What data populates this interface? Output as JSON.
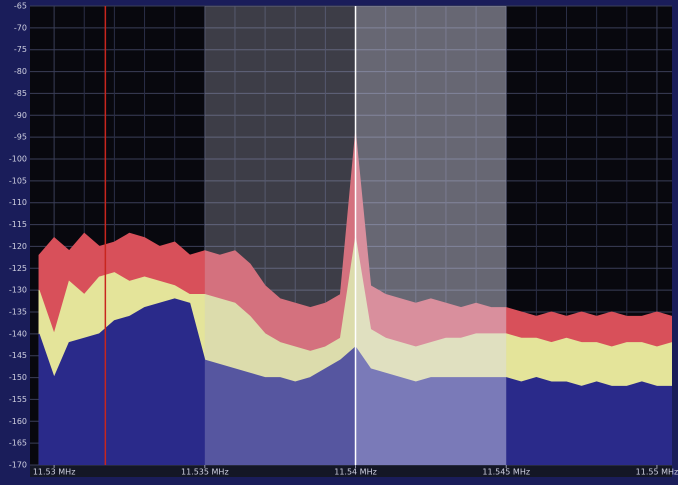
{
  "chart_data": {
    "type": "spectrum",
    "xlim": [
      11.5292,
      11.5505
    ],
    "ylim": [
      -170,
      -65
    ],
    "yticks": [
      -65,
      -70,
      -75,
      -80,
      -85,
      -90,
      -95,
      -100,
      -105,
      -110,
      -115,
      -120,
      -125,
      -130,
      -135,
      -140,
      -145,
      -150,
      -155,
      -160,
      -165,
      -170
    ],
    "xticks": [
      {
        "value": 11.53,
        "label": "11.53 MHz"
      },
      {
        "value": 11.535,
        "label": "11.535 MHz"
      },
      {
        "value": 11.54,
        "label": "11.54 MHz"
      },
      {
        "value": 11.545,
        "label": "11.545 MHz"
      },
      {
        "value": 11.55,
        "label": "11.55 MHz"
      }
    ],
    "grid": true,
    "x": [
      11.5295,
      11.53,
      11.5305,
      11.531,
      11.5315,
      11.532,
      11.5325,
      11.533,
      11.5335,
      11.534,
      11.5345,
      11.535,
      11.5355,
      11.536,
      11.5365,
      11.537,
      11.5375,
      11.538,
      11.5385,
      11.539,
      11.5395,
      11.54,
      11.5405,
      11.541,
      11.5415,
      11.542,
      11.5425,
      11.543,
      11.5435,
      11.544,
      11.5445,
      11.545,
      11.5455,
      11.546,
      11.5465,
      11.547,
      11.5475,
      11.548,
      11.5485,
      11.549,
      11.5495,
      11.55,
      11.5505
    ],
    "series": [
      {
        "color": "#d8505a",
        "values": [
          -122,
          -118,
          -121,
          -117,
          -120,
          -119,
          -117,
          -118,
          -120,
          -119,
          -122,
          -121,
          -122,
          -121,
          -124,
          -129,
          -132,
          -133,
          -134,
          -133,
          -131,
          -94,
          -129,
          -131,
          -132,
          -133,
          -132,
          -133,
          -134,
          -133,
          -134,
          -134,
          -135,
          -136,
          -135,
          -136,
          -135,
          -136,
          -135,
          -136,
          -136,
          -135,
          -136
        ]
      },
      {
        "color": "#e4e49a",
        "values": [
          -130,
          -140,
          -128,
          -131,
          -127,
          -126,
          -128,
          -127,
          -128,
          -129,
          -131,
          -131,
          -132,
          -133,
          -136,
          -140,
          -142,
          -143,
          -144,
          -143,
          -141,
          -118,
          -139,
          -141,
          -142,
          -143,
          -142,
          -141,
          -141,
          -140,
          -140,
          -140,
          -141,
          -141,
          -142,
          -141,
          -142,
          -142,
          -143,
          -142,
          -142,
          -143,
          -142
        ]
      },
      {
        "color": "#2a2a8a",
        "values": [
          -140,
          -150,
          -142,
          -141,
          -140,
          -137,
          -136,
          -134,
          -133,
          -132,
          -133,
          -146,
          -147,
          -148,
          -149,
          -150,
          -150,
          -151,
          -150,
          -148,
          -146,
          -143,
          -148,
          -149,
          -150,
          -151,
          -150,
          -150,
          -150,
          -150,
          -150,
          -150,
          -151,
          -150,
          -151,
          -151,
          -152,
          -151,
          -152,
          -152,
          -151,
          -152,
          -152
        ]
      }
    ],
    "bands": [
      {
        "from": 11.535,
        "to": 11.54,
        "color": "rgba(200,200,220,0.28)"
      },
      {
        "from": 11.54,
        "to": 11.545,
        "color": "rgba(220,220,240,0.45)"
      }
    ],
    "markers": [
      {
        "x": 11.5317,
        "color": "#c8261e"
      },
      {
        "x": 11.54,
        "color": "#ffffff"
      }
    ]
  }
}
